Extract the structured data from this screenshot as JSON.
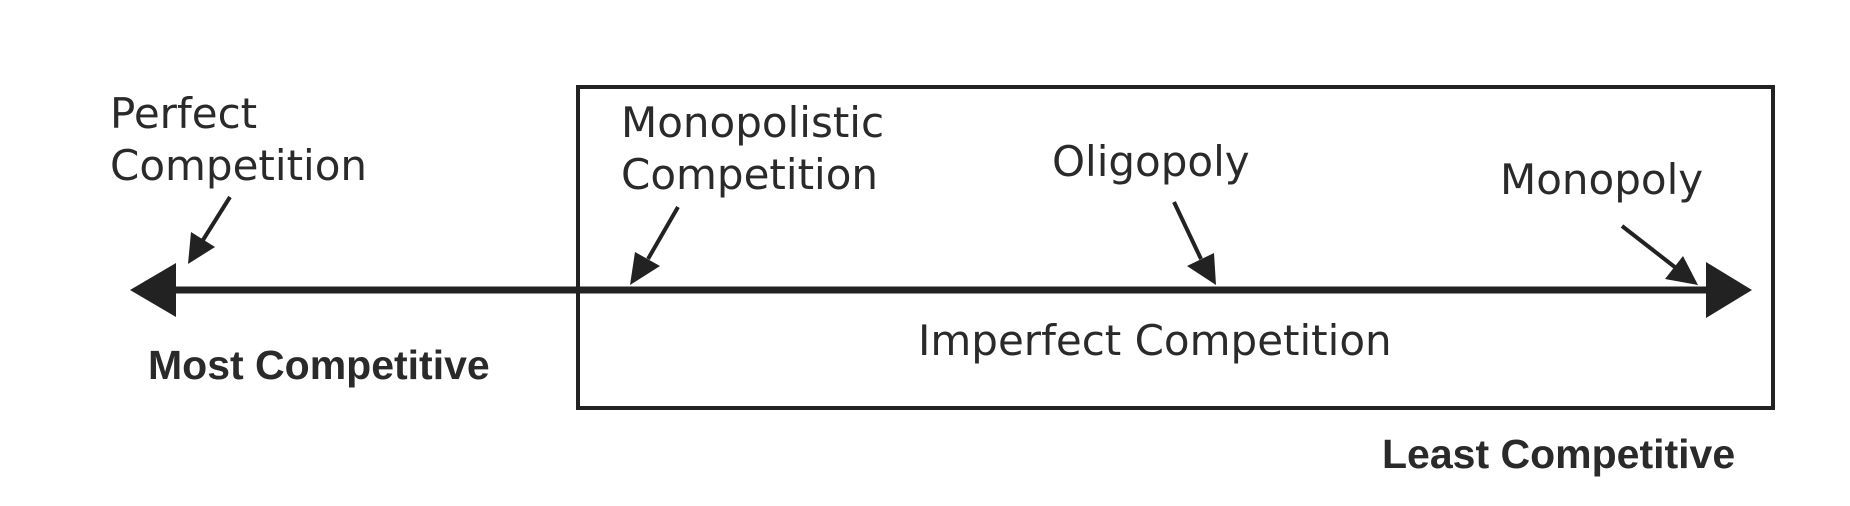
{
  "diagram": {
    "markets": [
      {
        "line1": "Perfect",
        "line2": "Competition"
      },
      {
        "line1": "Monopolistic",
        "line2": "Competition"
      },
      {
        "line1": "Oligopoly"
      },
      {
        "line1": "Monopoly"
      }
    ],
    "box_label": "Imperfect Competition",
    "left_end_label": "Most Competitive",
    "right_end_label": "Least Competitive"
  },
  "colors": {
    "ink": "#222222",
    "background": "#ffffff"
  }
}
